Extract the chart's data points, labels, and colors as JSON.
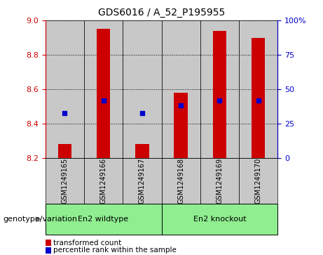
{
  "title": "GDS6016 / A_52_P195955",
  "samples": [
    "GSM1249165",
    "GSM1249166",
    "GSM1249167",
    "GSM1249168",
    "GSM1249169",
    "GSM1249170"
  ],
  "red_values": [
    8.28,
    8.95,
    8.28,
    8.58,
    8.94,
    8.9
  ],
  "blue_values": [
    8.46,
    8.535,
    8.46,
    8.505,
    8.535,
    8.535
  ],
  "ymin": 8.2,
  "ymax": 9.0,
  "yticks": [
    8.2,
    8.4,
    8.6,
    8.8,
    9.0
  ],
  "right_yticks_pct": [
    0,
    25,
    50,
    75,
    100
  ],
  "right_yticklabels": [
    "0",
    "25",
    "50",
    "75",
    "100%"
  ],
  "group1_label": "En2 wildtype",
  "group2_label": "En2 knockout",
  "group1_indices": [
    0,
    1,
    2
  ],
  "group2_indices": [
    3,
    4,
    5
  ],
  "group_color": "#90EE90",
  "bar_color": "#CC0000",
  "dot_color": "#0000CC",
  "baseline": 8.2,
  "bar_width": 0.35,
  "left_tick_color": "#CC0000",
  "right_tick_color": "#0000CC",
  "genotype_label": "genotype/variation",
  "legend_red": "transformed count",
  "legend_blue": "percentile rank within the sample",
  "sample_box_color": "#C8C8C8",
  "figwidth": 4.61,
  "figheight": 3.63,
  "dpi": 100
}
